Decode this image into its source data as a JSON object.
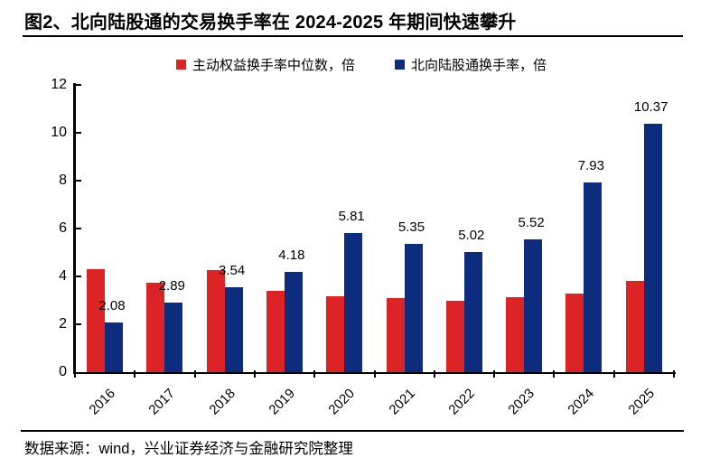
{
  "title": "图2、北向陆股通的交易换手率在 2024-2025 年期间快速攀升",
  "footer": {
    "source_text": "数据来源：wind，兴业证券经济与金融研究院整理"
  },
  "colors": {
    "red": "#DC2427",
    "blue": "#0E2C7E",
    "axis": "#000000"
  },
  "chart_data": {
    "type": "bar",
    "categories": [
      "2016",
      "2017",
      "2018",
      "2019",
      "2020",
      "2021",
      "2022",
      "2023",
      "2024",
      "2025"
    ],
    "series": [
      {
        "name": "主动权益换手率中位数，倍",
        "color_key": "red",
        "values": [
          4.3,
          3.74,
          4.26,
          3.4,
          3.18,
          3.08,
          2.96,
          3.13,
          3.29,
          3.8
        ],
        "show_labels": false
      },
      {
        "name": "北向陆股通换手率，倍",
        "color_key": "blue",
        "values": [
          2.08,
          2.89,
          3.54,
          4.18,
          5.81,
          5.35,
          5.02,
          5.52,
          7.93,
          10.37
        ],
        "labels": [
          "2.08",
          "2.89",
          "3.54",
          "4.18",
          "5.81",
          "5.35",
          "5.02",
          "5.52",
          "7.93",
          "10.37"
        ],
        "show_labels": true
      }
    ],
    "ylim": [
      0,
      12
    ],
    "yticks": [
      0,
      2,
      4,
      6,
      8,
      10,
      12
    ],
    "grid": false,
    "legend_position": "top"
  }
}
